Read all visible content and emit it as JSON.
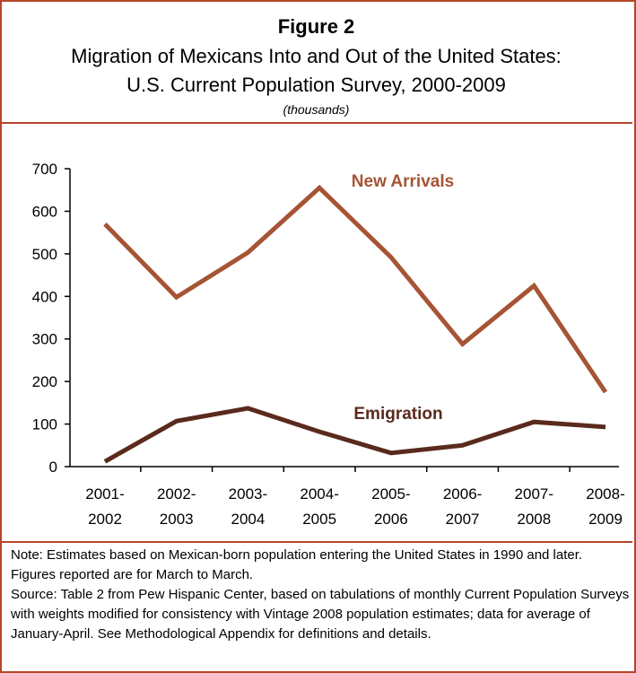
{
  "header": {
    "figure_label": "Figure 2",
    "title_line1": "Migration of Mexicans Into and Out of the United States:",
    "title_line2": "U.S. Current Population Survey, 2000-2009",
    "units": "(thousands)"
  },
  "chart_data": {
    "type": "line",
    "categories": [
      [
        "2001-",
        "2002"
      ],
      [
        "2002-",
        "2003"
      ],
      [
        "2003-",
        "2004"
      ],
      [
        "2004-",
        "2005"
      ],
      [
        "2005-",
        "2006"
      ],
      [
        "2006-",
        "2007"
      ],
      [
        "2007-",
        "2008"
      ],
      [
        "2008-",
        "2009"
      ]
    ],
    "series": [
      {
        "name": "New Arrivals",
        "values": [
          570,
          398,
          503,
          655,
          492,
          288,
          425,
          175
        ],
        "color": "#a65434"
      },
      {
        "name": "Emigration",
        "values": [
          12,
          107,
          137,
          82,
          32,
          50,
          105,
          93
        ],
        "color": "#5a2a1d"
      }
    ],
    "xlabel": "",
    "ylabel": "",
    "ylim": [
      0,
      700
    ],
    "yticks": [
      0,
      100,
      200,
      300,
      400,
      500,
      600,
      700
    ],
    "grid": false,
    "legend": "inline labels"
  },
  "notes": {
    "note": "Note: Estimates based on Mexican-born population entering the United States in 1990 and later. Figures reported are for March to March.",
    "source": "Source: Table 2 from Pew Hispanic Center, based on tabulations of monthly Current Population Surveys with weights modified for consistency with Vintage 2008 population estimates; data for average of January-April. See Methodological Appendix for definitions and details."
  },
  "colors": {
    "frame": "#b5462a"
  }
}
